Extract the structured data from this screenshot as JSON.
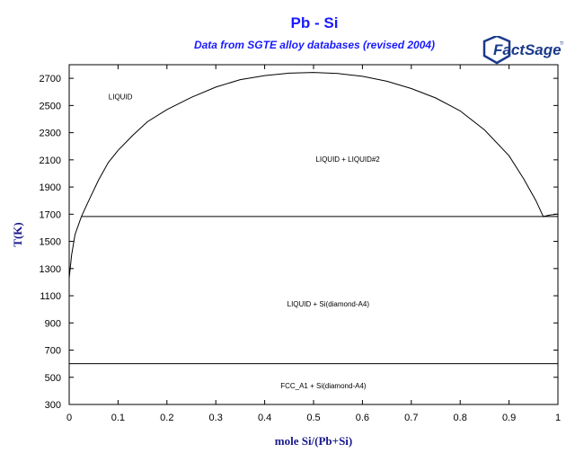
{
  "header": {
    "title": "Pb - Si",
    "subtitle": "Data from SGTE alloy databases (revised 2004)",
    "logo_text": "FactSage",
    "logo_tm": "TM"
  },
  "colors": {
    "title": "#1a1aff",
    "axis_title": "#1a1a8c",
    "lines": "#000000",
    "logo": "#1b3a8a"
  },
  "chart_data": {
    "type": "line",
    "title": "Pb - Si",
    "subtitle": "Data from SGTE alloy databases (revised 2004)",
    "xlabel": "mole Si/(Pb+Si)",
    "ylabel": "T(K)",
    "xlim": [
      0,
      1
    ],
    "ylim": [
      300,
      2800
    ],
    "xticks": [
      0,
      0.1,
      0.2,
      0.3,
      0.4,
      0.5,
      0.6,
      0.7,
      0.8,
      0.9,
      1
    ],
    "xtick_labels": [
      "0",
      "0.1",
      "0.2",
      "0.3",
      "0.4",
      "0.5",
      "0.6",
      "0.7",
      "0.8",
      "0.9",
      "1"
    ],
    "yticks": [
      300,
      500,
      700,
      900,
      1100,
      1300,
      1500,
      1700,
      1900,
      2100,
      2300,
      2500,
      2700
    ],
    "ytick_labels": [
      "300",
      "500",
      "700",
      "900",
      "1100",
      "1300",
      "1500",
      "1700",
      "1900",
      "2100",
      "2300",
      "2500",
      "2700"
    ],
    "grid": false,
    "legend": "none",
    "series": [
      {
        "values": [
          [
            0.0,
            1230
          ],
          [
            0.005,
            1400
          ],
          [
            0.012,
            1550
          ],
          [
            0.025,
            1683
          ],
          [
            0.04,
            1800
          ],
          [
            0.06,
            1950
          ],
          [
            0.08,
            2080
          ],
          [
            0.1,
            2170
          ],
          [
            0.13,
            2280
          ],
          [
            0.16,
            2380
          ],
          [
            0.2,
            2470
          ],
          [
            0.25,
            2560
          ],
          [
            0.3,
            2635
          ],
          [
            0.35,
            2690
          ],
          [
            0.4,
            2720
          ],
          [
            0.45,
            2738
          ],
          [
            0.5,
            2743
          ],
          [
            0.55,
            2735
          ],
          [
            0.6,
            2715
          ],
          [
            0.65,
            2678
          ],
          [
            0.7,
            2625
          ],
          [
            0.75,
            2555
          ],
          [
            0.8,
            2460
          ],
          [
            0.85,
            2320
          ],
          [
            0.9,
            2130
          ],
          [
            0.93,
            1960
          ],
          [
            0.955,
            1800
          ],
          [
            0.97,
            1683
          ],
          [
            0.985,
            1695
          ],
          [
            1.0,
            1700
          ]
        ]
      },
      {
        "values": [
          [
            0.025,
            1683
          ],
          [
            1.0,
            1683
          ]
        ]
      },
      {
        "values": [
          [
            0.0,
            600
          ],
          [
            1.0,
            600
          ]
        ]
      }
    ],
    "annotations": [
      {
        "text": "LIQUID",
        "x": 0.105,
        "y": 2545
      },
      {
        "text": "LIQUID + LIQUID#2",
        "x": 0.57,
        "y": 2085
      },
      {
        "text": "LIQUID + Si(diamond-A4)",
        "x": 0.53,
        "y": 1020
      },
      {
        "text": "FCC_A1 + Si(diamond-A4)",
        "x": 0.52,
        "y": 420
      }
    ]
  }
}
